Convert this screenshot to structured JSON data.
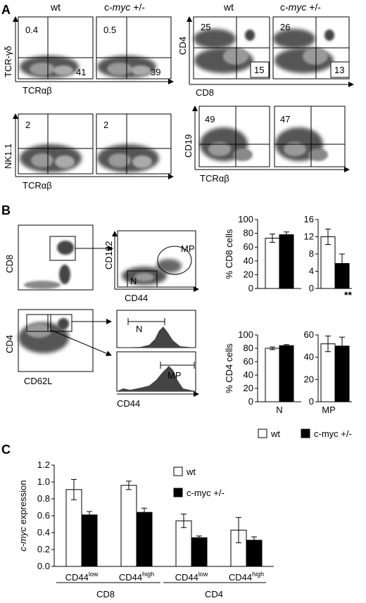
{
  "panel_a": {
    "label": "A",
    "col_wt": "wt",
    "col_myc": "c-myc +/-",
    "col_myc_italic": "myc",
    "left_top": {
      "ylabel": "TCR-γδ",
      "xlabel": "TCRαβ",
      "wt": [
        "0.4",
        "41"
      ],
      "myc": [
        "0.5",
        "39"
      ]
    },
    "left_bottom": {
      "ylabel": "NK1.1",
      "xlabel": "TCRαβ",
      "wt": [
        "2"
      ],
      "myc": [
        "2"
      ]
    },
    "right_top": {
      "ylabel": "CD4",
      "xlabel": "CD8",
      "wt": [
        "25",
        "15"
      ],
      "myc": [
        "26",
        "13"
      ]
    },
    "right_bottom": {
      "ylabel": "CD19",
      "xlabel": "TCRαβ",
      "wt": [
        "49"
      ],
      "myc": [
        "47"
      ]
    }
  },
  "panel_b": {
    "label": "B",
    "cd8_plot": {
      "ylabel": "CD8"
    },
    "cd4_plot": {
      "ylabel": "CD4",
      "xlabel": "CD62L"
    },
    "cd122_plot": {
      "ylabel": "CD122",
      "xlabel": "CD44",
      "gate_n": "N",
      "gate_mp": "MP"
    },
    "hist_n": {
      "gate": "N"
    },
    "hist_mp": {
      "gate": "MP",
      "xlabel": "CD44"
    },
    "significance": "**",
    "legend": {
      "wt": "wt",
      "myc": "c-myc +/-"
    }
  },
  "panel_c": {
    "label": "C",
    "legend": {
      "wt": "wt",
      "myc": "c-myc +/-"
    },
    "xgroups": [
      "CD8",
      "CD4"
    ]
  },
  "chart_data": [
    {
      "type": "bar",
      "ylabel": "% CD8 cells",
      "ylim": [
        0,
        100
      ],
      "yticks": [
        "0",
        "20",
        "40",
        "60",
        "80",
        "100"
      ],
      "categories": [
        "N"
      ],
      "series": [
        {
          "name": "wt",
          "values": [
            73
          ],
          "errors": [
            6
          ],
          "color": "#ffffff"
        },
        {
          "name": "c-myc +/-",
          "values": [
            78
          ],
          "errors": [
            4
          ],
          "color": "#000000"
        }
      ]
    },
    {
      "type": "bar",
      "ylabel": "",
      "ylim": [
        0,
        16
      ],
      "yticks": [
        "0",
        "4",
        "8",
        "12",
        "16"
      ],
      "categories": [
        "MP"
      ],
      "series": [
        {
          "name": "wt",
          "values": [
            12
          ],
          "errors": [
            1.8
          ],
          "color": "#ffffff"
        },
        {
          "name": "c-myc +/-",
          "values": [
            5.8
          ],
          "errors": [
            2.2
          ],
          "color": "#000000"
        }
      ]
    },
    {
      "type": "bar",
      "ylabel": "% CD4 cells",
      "ylim": [
        0,
        100
      ],
      "yticks": [
        "0",
        "20",
        "40",
        "60",
        "80",
        "100"
      ],
      "categories": [
        "N"
      ],
      "series": [
        {
          "name": "wt",
          "values": [
            80
          ],
          "errors": [
            2
          ],
          "color": "#ffffff"
        },
        {
          "name": "c-myc +/-",
          "values": [
            84
          ],
          "errors": [
            1.5
          ],
          "color": "#000000"
        }
      ]
    },
    {
      "type": "bar",
      "ylabel": "",
      "ylim": [
        0,
        60
      ],
      "yticks": [
        "0",
        "20",
        "40",
        "60"
      ],
      "categories": [
        "MP"
      ],
      "series": [
        {
          "name": "wt",
          "values": [
            52
          ],
          "errors": [
            7
          ],
          "color": "#ffffff"
        },
        {
          "name": "c-myc +/-",
          "values": [
            50
          ],
          "errors": [
            8
          ],
          "color": "#000000"
        }
      ]
    },
    {
      "type": "bar",
      "ylabel": "c-myc expression",
      "ylim": [
        0,
        1.2
      ],
      "yticks": [
        "0.0",
        "0.2",
        "0.4",
        "0.6",
        "0.8",
        "1.0",
        "1.2"
      ],
      "categories": [
        "CD44low",
        "CD44high",
        "CD44low",
        "CD44high"
      ],
      "category_base": [
        "CD44",
        "CD44",
        "CD44",
        "CD44"
      ],
      "category_sup": [
        "low",
        "high",
        "low",
        "high"
      ],
      "series": [
        {
          "name": "wt",
          "values": [
            0.91,
            0.96,
            0.54,
            0.43
          ],
          "errors": [
            0.12,
            0.05,
            0.08,
            0.15
          ],
          "color": "#ffffff"
        },
        {
          "name": "c-myc +/-",
          "values": [
            0.61,
            0.64,
            0.34,
            0.31
          ],
          "errors": [
            0.04,
            0.05,
            0.02,
            0.04
          ],
          "color": "#000000"
        }
      ]
    }
  ]
}
